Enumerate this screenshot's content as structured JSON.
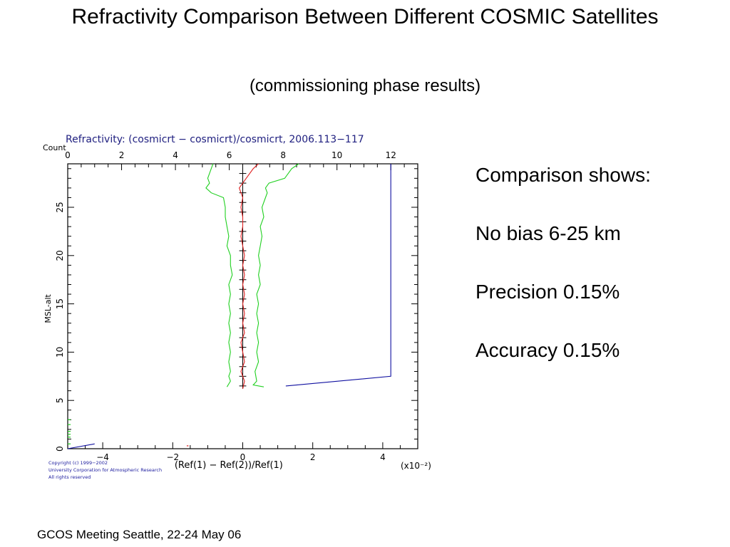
{
  "slide": {
    "title": "Refractivity Comparison Between Different COSMIC Satellites",
    "subtitle": "(commissioning phase  results)",
    "notes": [
      "Comparison shows:",
      "No bias 6-25 km",
      "Precision 0.15%",
      "Accuracy 0.15%"
    ],
    "footer": "GCOS Meeting Seattle, 22-24 May 06"
  },
  "chart_data": {
    "type": "line",
    "title": "Refractivity:   (cosmicrt − cosmicrt)/cosmicrt, 2006.113−117",
    "xlabel": "(Ref(1) − Ref(2))/Ref(1)",
    "x_multiplier": "(x10⁻²)",
    "ylabel": "MSL-alt",
    "top_axis_label": "Count",
    "xlim": [
      -5,
      5
    ],
    "ylim": [
      0,
      29.5
    ],
    "count_lim": [
      0,
      13
    ],
    "x_ticks": [
      -4,
      -2,
      0,
      2,
      4
    ],
    "y_ticks": [
      0,
      5,
      10,
      15,
      20,
      25
    ],
    "count_ticks": [
      0,
      2,
      4,
      6,
      8,
      10,
      12
    ],
    "copyright": [
      "Copyright (c) 1999−2002",
      "University Corporation for Atmospheric Research",
      "All rights reserved"
    ],
    "series": [
      {
        "color": "#e02020",
        "points": [
          [
            0.0,
            6.2
          ],
          [
            0.05,
            7
          ],
          [
            -0.05,
            8
          ],
          [
            0.05,
            9
          ],
          [
            0.0,
            10
          ],
          [
            -0.05,
            11
          ],
          [
            0.05,
            12
          ],
          [
            0.0,
            13
          ],
          [
            0.05,
            14
          ],
          [
            0.0,
            15
          ],
          [
            0.05,
            16
          ],
          [
            0.0,
            17
          ],
          [
            0.05,
            18
          ],
          [
            0.0,
            19
          ],
          [
            0.05,
            20
          ],
          [
            0.0,
            21
          ],
          [
            -0.05,
            22
          ],
          [
            0.0,
            23
          ],
          [
            0.0,
            24
          ],
          [
            -0.05,
            25
          ],
          [
            0.0,
            26
          ],
          [
            -0.1,
            27
          ],
          [
            0.1,
            28
          ],
          [
            0.3,
            29
          ],
          [
            0.45,
            29.5
          ]
        ]
      },
      {
        "color": "#20d020",
        "points": [
          [
            -0.45,
            6.4
          ],
          [
            -0.35,
            7
          ],
          [
            -0.4,
            7.5
          ],
          [
            -0.35,
            8
          ],
          [
            -0.4,
            9
          ],
          [
            -0.35,
            10
          ],
          [
            -0.4,
            11
          ],
          [
            -0.35,
            12
          ],
          [
            -0.4,
            13
          ],
          [
            -0.35,
            14
          ],
          [
            -0.4,
            15
          ],
          [
            -0.35,
            16
          ],
          [
            -0.4,
            17
          ],
          [
            -0.3,
            18
          ],
          [
            -0.35,
            19
          ],
          [
            -0.35,
            20
          ],
          [
            -0.45,
            21
          ],
          [
            -0.4,
            22
          ],
          [
            -0.45,
            23
          ],
          [
            -0.5,
            24
          ],
          [
            -0.5,
            25
          ],
          [
            -0.55,
            26
          ],
          [
            -0.9,
            26.5
          ],
          [
            -1.05,
            27
          ],
          [
            -0.95,
            27.5
          ],
          [
            -1.0,
            28
          ],
          [
            -0.9,
            29
          ],
          [
            -0.85,
            29.5
          ]
        ]
      },
      {
        "color": "#20d020",
        "points": [
          [
            0.6,
            6.4
          ],
          [
            0.3,
            6.6
          ],
          [
            0.4,
            7
          ],
          [
            0.35,
            8
          ],
          [
            0.45,
            9
          ],
          [
            0.4,
            10
          ],
          [
            0.45,
            11
          ],
          [
            0.4,
            12
          ],
          [
            0.45,
            13
          ],
          [
            0.4,
            14
          ],
          [
            0.45,
            15
          ],
          [
            0.4,
            16
          ],
          [
            0.5,
            17
          ],
          [
            0.45,
            18
          ],
          [
            0.5,
            19
          ],
          [
            0.45,
            20
          ],
          [
            0.5,
            21
          ],
          [
            0.55,
            22
          ],
          [
            0.5,
            23
          ],
          [
            0.6,
            24
          ],
          [
            0.55,
            25
          ],
          [
            0.65,
            26
          ],
          [
            0.7,
            26.5
          ],
          [
            0.65,
            27
          ],
          [
            0.75,
            27.5
          ],
          [
            1.2,
            28
          ],
          [
            1.4,
            29
          ],
          [
            1.6,
            29.5
          ]
        ]
      }
    ],
    "count_series": {
      "color": "#1010a0",
      "points": [
        [
          0,
          0
        ],
        [
          1,
          0.5
        ],
        [
          0,
          0.5
        ],
        [
          0,
          0
        ]
      ],
      "main": [
        [
          8.1,
          6.5
        ],
        [
          12,
          7.5
        ],
        [
          12,
          29.5
        ]
      ]
    },
    "error_bars": {
      "x": 0.0,
      "half_width": 0.1,
      "y": [
        6.5,
        7.5,
        8.5,
        9.5,
        10.5,
        11.5,
        12.5,
        13.5,
        14.5,
        15.5,
        16.5,
        17.5,
        18.5,
        19.5,
        20.5,
        21.5,
        22.5,
        23.5,
        24.5,
        25.5,
        26.5,
        27.5,
        28.5,
        29.5
      ]
    }
  }
}
